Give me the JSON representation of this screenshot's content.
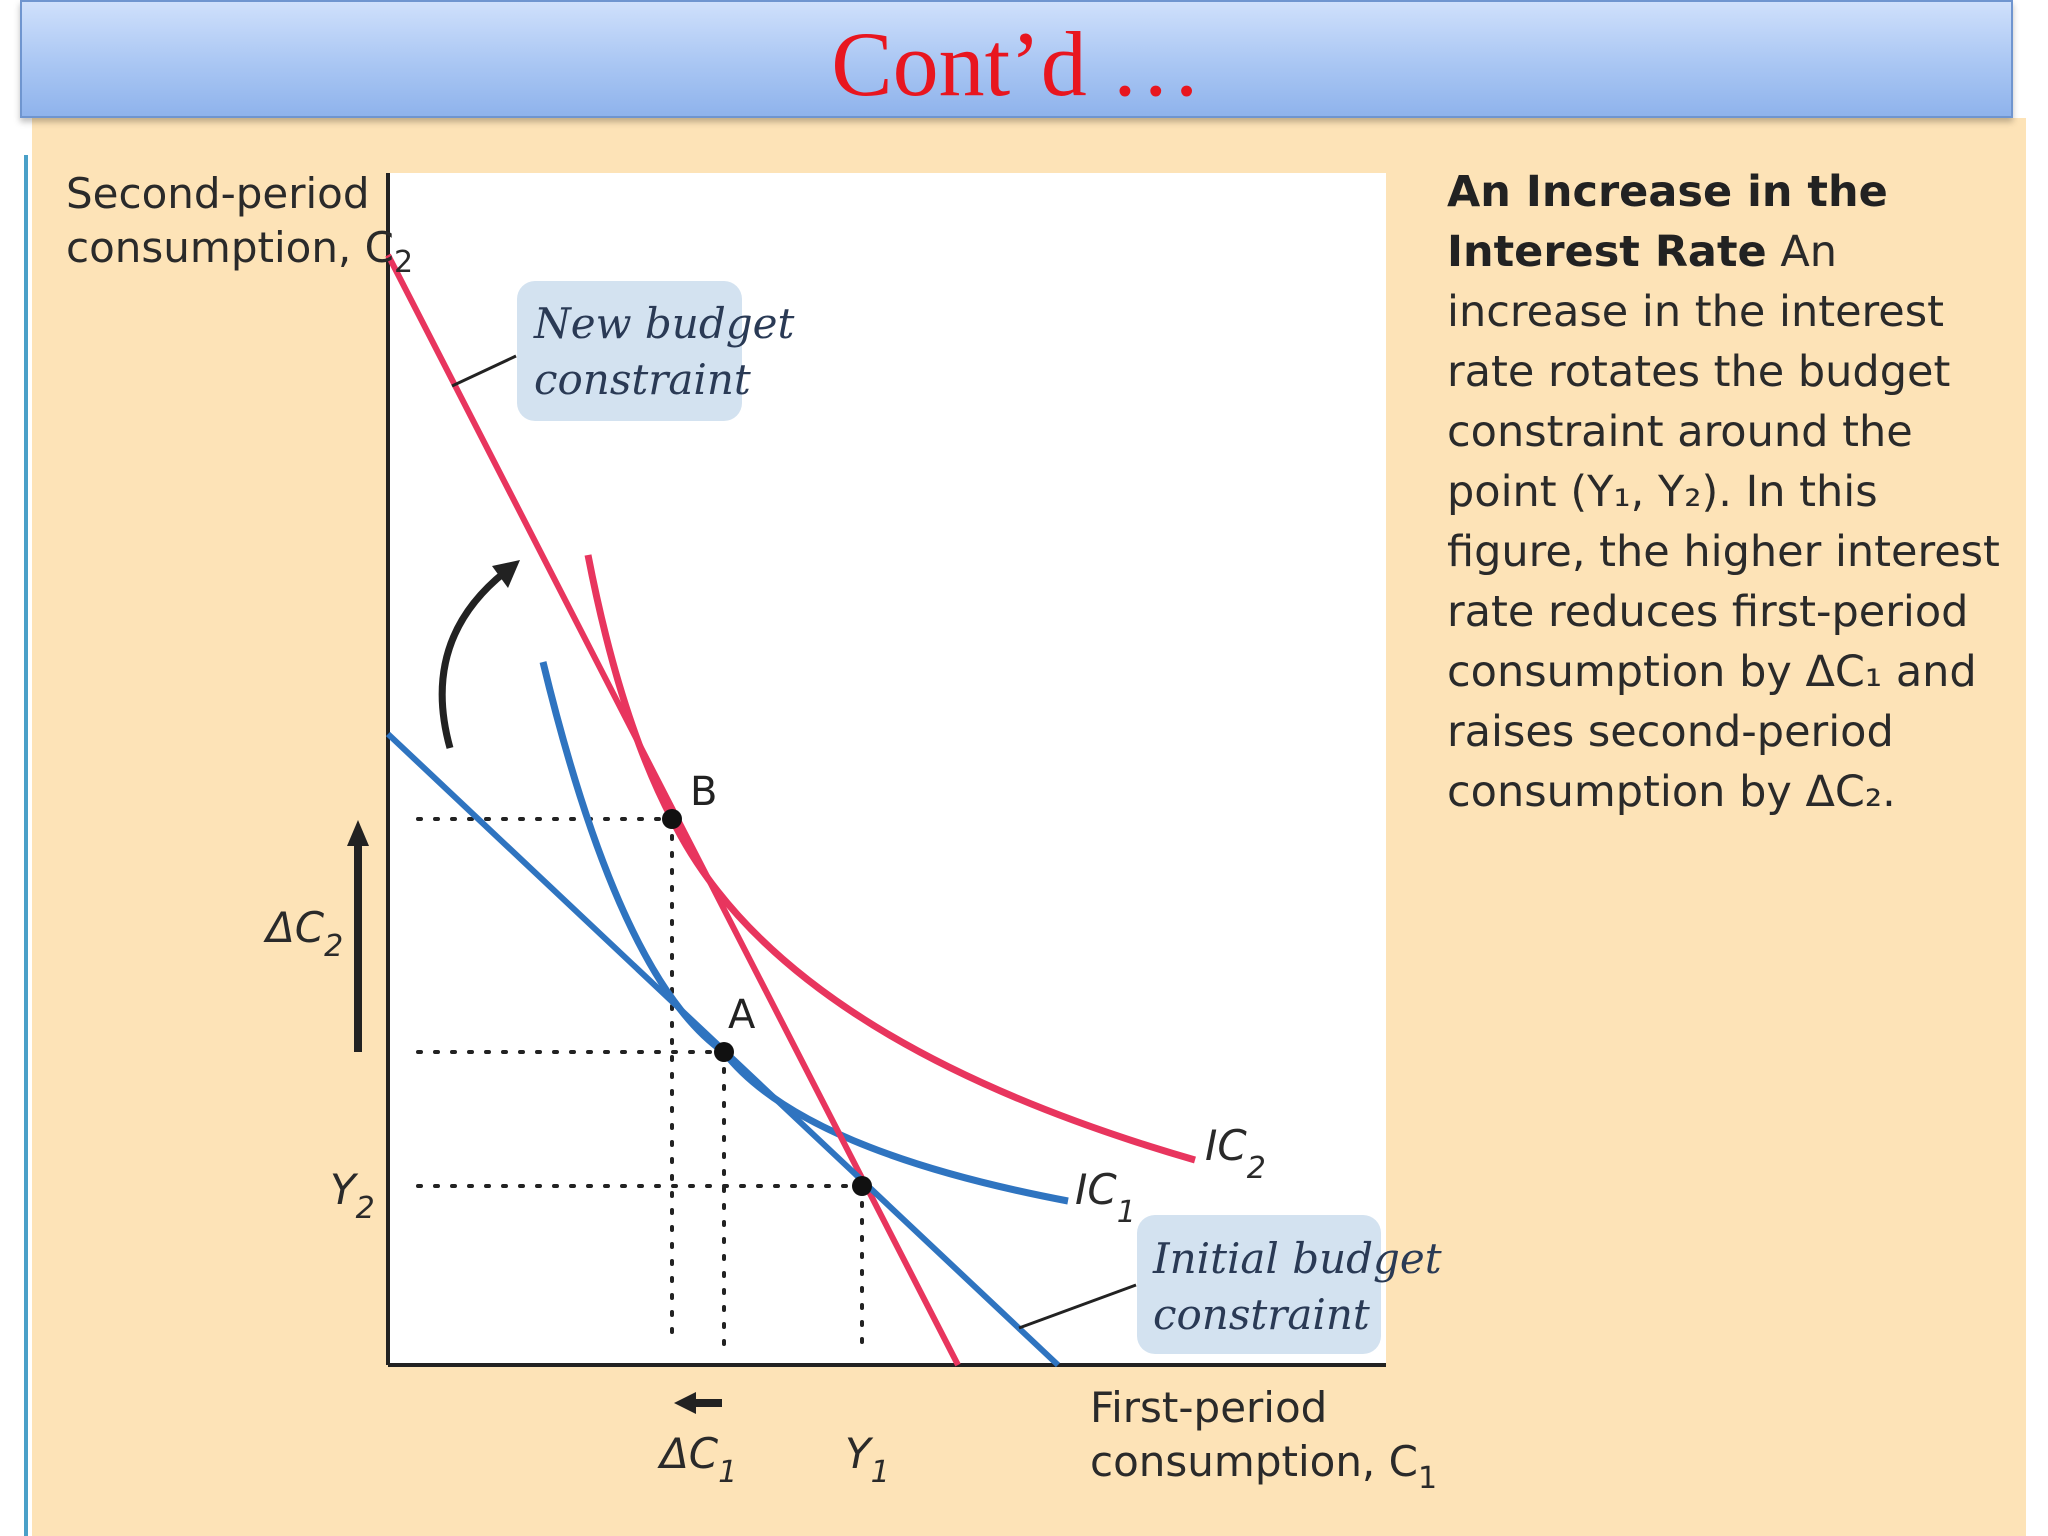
{
  "slide": {
    "title": "Cont’d …"
  },
  "caption": {
    "title": "An Increase in the Interest Rate",
    "body": "An increase in the interest rate rotates the budget constraint around the point (Y₁, Y₂). In this figure, the higher interest rate reduces first-period consumption by ΔC₁ and raises second-period consumption by ΔC₂."
  },
  "diagram": {
    "y_axis_label_line1": "Second-period",
    "y_axis_label_line2": "consumption, C",
    "y_axis_label_sub": "2",
    "x_axis_label_line1": "First-period",
    "x_axis_label_line2": "consumption, C",
    "x_axis_label_sub": "1",
    "new_budget_line1": "New budget",
    "new_budget_line2": "constraint",
    "initial_budget_line1": "Initial budget",
    "initial_budget_line2": "constraint",
    "point_a": "A",
    "point_b": "B",
    "ic1_label": "IC",
    "ic1_sub": "1",
    "ic2_label": "IC",
    "ic2_sub": "2",
    "y2_label": "Y",
    "y2_sub": "2",
    "y1_label": "Y",
    "y1_sub": "1",
    "delta_c2_label": "ΔC",
    "delta_c2_sub": "2",
    "delta_c1_label": "ΔC",
    "delta_c1_sub": "1",
    "colors": {
      "new_budget": "#e8355e",
      "ic2": "#e8355e",
      "initial_budget": "#2f74c0",
      "ic1": "#2f74c0",
      "label_box": "#d3e2f0"
    }
  }
}
